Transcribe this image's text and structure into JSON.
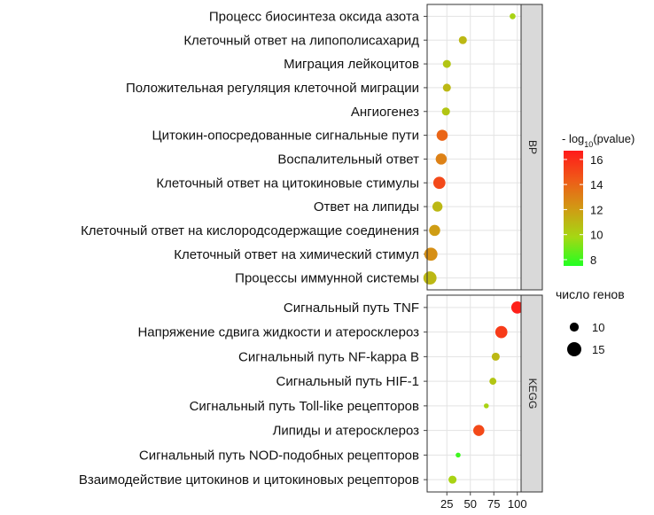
{
  "chart_data": {
    "type": "scatter",
    "x_ticks": [
      25,
      50,
      75,
      100
    ],
    "xlim": [
      4,
      104
    ],
    "panels": [
      {
        "name": "BP",
        "terms": [
          {
            "label": "Процесс биосинтеза оксида азота",
            "x": 95,
            "neglog10p": 10.0,
            "genes": 7
          },
          {
            "label": "Клеточный ответ на липополисахарид",
            "x": 42,
            "neglog10p": 11.0,
            "genes": 9
          },
          {
            "label": "Миграция лейкоцитов",
            "x": 25,
            "neglog10p": 10.5,
            "genes": 9
          },
          {
            "label": "Положительная регуляция клеточной миграции",
            "x": 25,
            "neglog10p": 11.0,
            "genes": 9
          },
          {
            "label": "Ангиогенез",
            "x": 24,
            "neglog10p": 10.5,
            "genes": 9
          },
          {
            "label": "Цитокин-опосредованные сигнальные пути",
            "x": 20,
            "neglog10p": 14.0,
            "genes": 12
          },
          {
            "label": "Воспалительный ответ",
            "x": 19,
            "neglog10p": 13.0,
            "genes": 12
          },
          {
            "label": "Клеточный ответ на цитокиновые стимулы",
            "x": 17,
            "neglog10p": 15.0,
            "genes": 13
          },
          {
            "label": "Ответ на липиды",
            "x": 15,
            "neglog10p": 11.0,
            "genes": 11
          },
          {
            "label": "Клеточный ответ на кислородсодержащие соединения",
            "x": 12,
            "neglog10p": 12.0,
            "genes": 12
          },
          {
            "label": "Клеточный ответ на химический стимул",
            "x": 8,
            "neglog10p": 12.5,
            "genes": 14
          },
          {
            "label": "Процессы иммунной системы",
            "x": 7,
            "neglog10p": 11.0,
            "genes": 14
          }
        ]
      },
      {
        "name": "KEGG",
        "terms": [
          {
            "label": "Сигнальный путь TNF",
            "x": 100,
            "neglog10p": 16.5,
            "genes": 13
          },
          {
            "label": "Напряжение сдвига жидкости и атеросклероз",
            "x": 83,
            "neglog10p": 15.5,
            "genes": 13
          },
          {
            "label": "Сигнальный путь NF-kappa B",
            "x": 77,
            "neglog10p": 11.0,
            "genes": 9
          },
          {
            "label": "Сигнальный путь HIF-1",
            "x": 74,
            "neglog10p": 10.5,
            "genes": 8
          },
          {
            "label": "Сигнальный путь Toll-like рецепторов",
            "x": 67,
            "neglog10p": 10.0,
            "genes": 6
          },
          {
            "label": "Липиды и атеросклероз",
            "x": 59,
            "neglog10p": 15.0,
            "genes": 12
          },
          {
            "label": "Сигнальный путь NOD-подобных рецепторов",
            "x": 37,
            "neglog10p": 8.0,
            "genes": 6
          },
          {
            "label": "Взаимодействие цитокинов и цитокиновых рецепторов",
            "x": 31,
            "neglog10p": 10.0,
            "genes": 9
          }
        ]
      }
    ],
    "color_legend": {
      "title_prefix": "- log",
      "title_sub": "10",
      "title_suffix": "(pvalue)",
      "ticks": [
        8,
        10,
        12,
        14,
        16
      ],
      "range": [
        7.5,
        16.7
      ],
      "colors": [
        "#22ff22",
        "#a5d813",
        "#d19a14",
        "#ef5a18",
        "#ff1a1a"
      ]
    },
    "size_legend": {
      "title": "число генов",
      "values": [
        10,
        15
      ]
    }
  }
}
